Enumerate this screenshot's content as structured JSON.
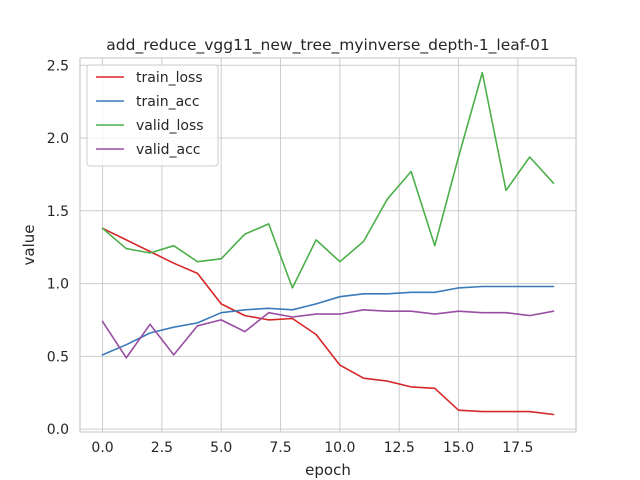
{
  "chart_data": {
    "type": "line",
    "title": "add_reduce_vgg11_new_tree_myinverse_depth-1_leaf-01",
    "xlabel": "epoch",
    "ylabel": "value",
    "xlim": [
      -0.95,
      19.95
    ],
    "ylim": [
      -0.02,
      2.55
    ],
    "xticks": [
      0.0,
      2.5,
      5.0,
      7.5,
      10.0,
      12.5,
      15.0,
      17.5
    ],
    "xtick_labels": [
      "0.0",
      "2.5",
      "5.0",
      "7.5",
      "10.0",
      "12.5",
      "15.0",
      "17.5"
    ],
    "yticks": [
      0.0,
      0.5,
      1.0,
      1.5,
      2.0,
      2.5
    ],
    "ytick_labels": [
      "0.0",
      "0.5",
      "1.0",
      "1.5",
      "2.0",
      "2.5"
    ],
    "grid": true,
    "legend_position": "top-left",
    "x": [
      0,
      1,
      2,
      3,
      4,
      5,
      6,
      7,
      8,
      9,
      10,
      11,
      12,
      13,
      14,
      15,
      16,
      17,
      18,
      19
    ],
    "series": [
      {
        "name": "train_loss",
        "color": "#d62728",
        "values": [
          1.38,
          1.3,
          1.22,
          1.14,
          1.07,
          0.86,
          0.78,
          0.75,
          0.76,
          0.65,
          0.44,
          0.35,
          0.33,
          0.29,
          0.28,
          0.13,
          0.12,
          0.12,
          0.12,
          0.1
        ]
      },
      {
        "name": "train_acc",
        "color": "#3a7ab8",
        "values": [
          0.51,
          0.58,
          0.66,
          0.7,
          0.73,
          0.8,
          0.82,
          0.83,
          0.82,
          0.86,
          0.91,
          0.93,
          0.93,
          0.94,
          0.94,
          0.97,
          0.98,
          0.98,
          0.98,
          0.98
        ]
      },
      {
        "name": "valid_loss",
        "color": "#4daf4a",
        "values": [
          1.38,
          1.24,
          1.21,
          1.26,
          1.15,
          1.17,
          1.34,
          1.41,
          0.97,
          1.3,
          1.15,
          1.29,
          1.58,
          1.77,
          1.26,
          1.87,
          2.45,
          1.64,
          1.87,
          1.69
        ]
      },
      {
        "name": "valid_acc",
        "color": "#984ea3",
        "values": [
          0.74,
          0.49,
          0.72,
          0.51,
          0.71,
          0.75,
          0.67,
          0.8,
          0.77,
          0.79,
          0.79,
          0.82,
          0.81,
          0.81,
          0.79,
          0.81,
          0.8,
          0.8,
          0.78,
          0.81
        ]
      }
    ]
  }
}
